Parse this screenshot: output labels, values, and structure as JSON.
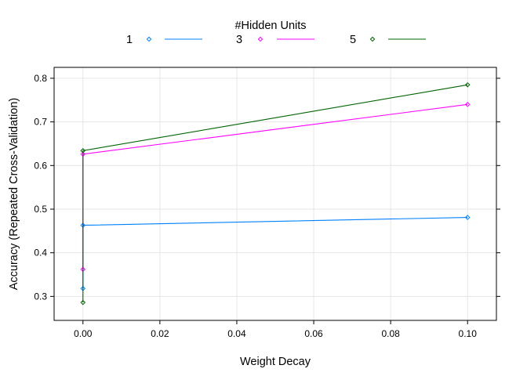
{
  "chart_data": {
    "type": "line",
    "xlabel": "Weight Decay",
    "ylabel": "Accuracy (Repeated Cross-Validation)",
    "xlim": [
      -0.0075,
      0.1075
    ],
    "ylim": [
      0.245,
      0.825
    ],
    "x_ticks": [
      0.0,
      0.02,
      0.04,
      0.06,
      0.08,
      0.1
    ],
    "x_tick_labels": [
      "0.00",
      "0.02",
      "0.04",
      "0.06",
      "0.08",
      "0.10"
    ],
    "y_ticks": [
      0.3,
      0.4,
      0.5,
      0.6,
      0.7,
      0.8
    ],
    "y_tick_labels": [
      "0.3",
      "0.4",
      "0.5",
      "0.6",
      "0.7",
      "0.8"
    ],
    "grid": true,
    "legend": {
      "title": "#Hidden Units",
      "placement": "top"
    },
    "series": [
      {
        "name": "1",
        "color": "#0080ff",
        "x": [
          0.0,
          0.0,
          0.1
        ],
        "y": [
          0.318,
          0.463,
          0.481
        ]
      },
      {
        "name": "3",
        "color": "#ff00ff",
        "x": [
          0.0,
          0.0,
          0.1
        ],
        "y": [
          0.362,
          0.626,
          0.74
        ]
      },
      {
        "name": "5",
        "color": "#006400",
        "x": [
          0.0,
          0.0,
          0.1
        ],
        "y": [
          0.286,
          0.634,
          0.785
        ]
      }
    ]
  }
}
